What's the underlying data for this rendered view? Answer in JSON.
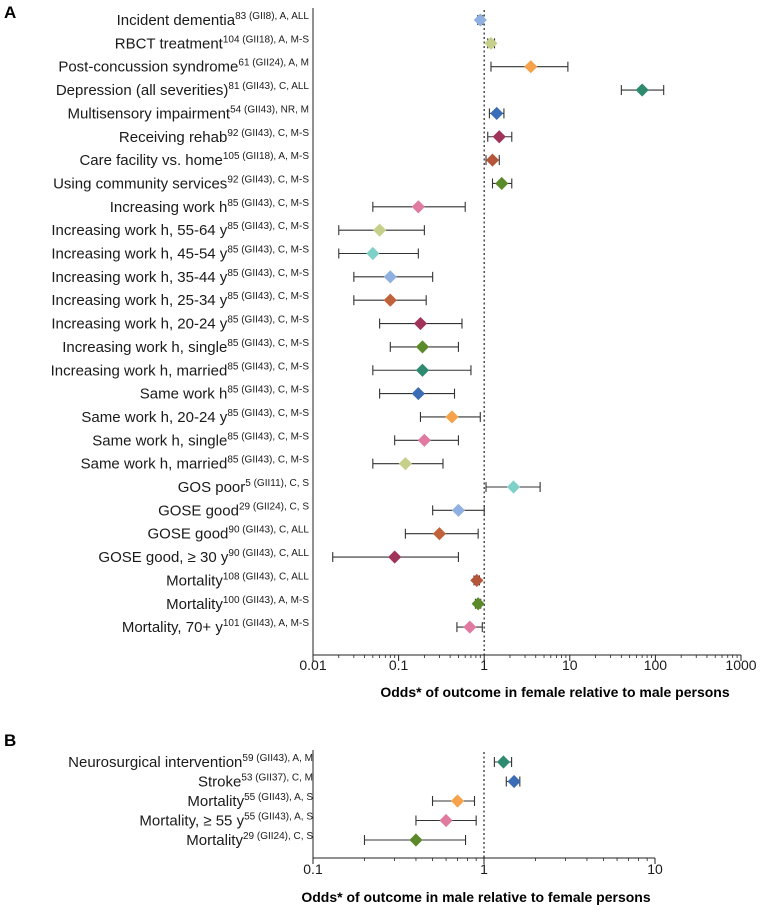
{
  "chart_data": [
    {
      "type": "forest",
      "panel": "A",
      "xscale": "log",
      "xlim": [
        0.01,
        1000
      ],
      "xticks": [
        0.01,
        0.1,
        1,
        10,
        100,
        1000
      ],
      "xtick_labels": [
        "0.01",
        "0.1",
        "1",
        "10",
        "100",
        "1000"
      ],
      "xlabel": "Odds* of outcome in female relative to male persons",
      "reference_line": 1,
      "rows": [
        {
          "label": "Incident dementia",
          "sup": "83 (GII8), A, ALL",
          "est": 0.9,
          "lo": 0.84,
          "hi": 0.96,
          "color": "#8fb0e0"
        },
        {
          "label": "RBCT treatment",
          "sup": "104 (GII18), A, M-S",
          "est": 1.2,
          "lo": 1.1,
          "hi": 1.32,
          "color": "#c7d08a"
        },
        {
          "label": "Post-concussion syndrome",
          "sup": "61 (GII24), A, M",
          "est": 3.5,
          "lo": 1.2,
          "hi": 9.5,
          "color": "#f5a24b"
        },
        {
          "label": "Depression (all severities)",
          "sup": "81 (GII43), C, ALL",
          "est": 70,
          "lo": 40,
          "hi": 125,
          "color": "#2e8b6f"
        },
        {
          "label": "Multisensory impairment",
          "sup": "54 (GII43), NR, M",
          "est": 1.4,
          "lo": 1.15,
          "hi": 1.7,
          "color": "#3a6db5"
        },
        {
          "label": "Receiving rehab",
          "sup": "92 (GII43), C, M-S",
          "est": 1.5,
          "lo": 1.1,
          "hi": 2.1,
          "color": "#a0335a"
        },
        {
          "label": "Care facility vs. home",
          "sup": "105 (GII18), A, M-S",
          "est": 1.25,
          "lo": 1.05,
          "hi": 1.5,
          "color": "#b5553a"
        },
        {
          "label": "Using community services",
          "sup": "92 (GII43), C, M-S",
          "est": 1.6,
          "lo": 1.25,
          "hi": 2.1,
          "color": "#5a8a2a"
        },
        {
          "label": "Increasing work h",
          "sup": "85 (GII43), C, M-S",
          "est": 0.17,
          "lo": 0.05,
          "hi": 0.6,
          "color": "#e07aa0"
        },
        {
          "label": "Increasing work h, 55-64 y",
          "sup": "85 (GII43), C, M-S",
          "est": 0.06,
          "lo": 0.02,
          "hi": 0.2,
          "color": "#c7d08a"
        },
        {
          "label": "Increasing work h, 45-54 y",
          "sup": "85 (GII43), C, M-S",
          "est": 0.05,
          "lo": 0.02,
          "hi": 0.17,
          "color": "#7fd0c8"
        },
        {
          "label": "Increasing work h, 35-44 y",
          "sup": "85 (GII43), C, M-S",
          "est": 0.08,
          "lo": 0.03,
          "hi": 0.25,
          "color": "#8fb0e0"
        },
        {
          "label": "Increasing work h, 25-34 y",
          "sup": "85 (GII43), C, M-S",
          "est": 0.08,
          "lo": 0.03,
          "hi": 0.21,
          "color": "#c0633a"
        },
        {
          "label": "Increasing work h, 20-24 y",
          "sup": "85 (GII43), C, M-S",
          "est": 0.18,
          "lo": 0.06,
          "hi": 0.55,
          "color": "#a0335a"
        },
        {
          "label": "Increasing work h, single",
          "sup": "85 (GII43), C, M-S",
          "est": 0.19,
          "lo": 0.08,
          "hi": 0.5,
          "color": "#5a8a2a"
        },
        {
          "label": "Increasing work h, married",
          "sup": "85 (GII43), C, M-S",
          "est": 0.19,
          "lo": 0.05,
          "hi": 0.7,
          "color": "#2e8b6f"
        },
        {
          "label": "Same work h",
          "sup": "85 (GII43), C, M-S",
          "est": 0.17,
          "lo": 0.06,
          "hi": 0.45,
          "color": "#3a6db5"
        },
        {
          "label": "Same work h, 20-24 y",
          "sup": "85 (GII43), C, M-S",
          "est": 0.42,
          "lo": 0.18,
          "hi": 0.9,
          "color": "#f5a24b"
        },
        {
          "label": "Same work h, single",
          "sup": "85 (GII43), C, M-S",
          "est": 0.2,
          "lo": 0.09,
          "hi": 0.5,
          "color": "#e07aa0"
        },
        {
          "label": "Same work h, married",
          "sup": "85 (GII43), C, M-S",
          "est": 0.12,
          "lo": 0.05,
          "hi": 0.33,
          "color": "#c7d08a"
        },
        {
          "label": "GOS poor",
          "sup": "5 (GII11), C, S",
          "est": 2.2,
          "lo": 1.05,
          "hi": 4.5,
          "color": "#7fd0c8"
        },
        {
          "label": "GOSE good",
          "sup": "29 (GII24), C, S",
          "est": 0.5,
          "lo": 0.25,
          "hi": 1.0,
          "color": "#8fb0e0"
        },
        {
          "label": "GOSE good",
          "sup": "90 (GII43), C, ALL",
          "est": 0.3,
          "lo": 0.12,
          "hi": 0.85,
          "color": "#c0633a"
        },
        {
          "label": "GOSE good, ≥ 30 y",
          "sup": "90 (GII43), C, ALL",
          "est": 0.09,
          "lo": 0.017,
          "hi": 0.5,
          "color": "#a0335a"
        },
        {
          "label": "Mortality",
          "sup": "108 (GII43), C, ALL",
          "est": 0.82,
          "lo": 0.76,
          "hi": 0.88,
          "color": "#b5553a"
        },
        {
          "label": "Mortality",
          "sup": "100 (GII43), A, M-S",
          "est": 0.85,
          "lo": 0.79,
          "hi": 0.91,
          "color": "#5a8a2a"
        },
        {
          "label": "Mortality, 70+ y",
          "sup": "101 (GII43), A, M-S",
          "est": 0.68,
          "lo": 0.48,
          "hi": 0.95,
          "color": "#e07aa0"
        }
      ]
    },
    {
      "type": "forest",
      "panel": "B",
      "xscale": "log",
      "xlim": [
        0.1,
        10
      ],
      "xticks": [
        0.1,
        1,
        10
      ],
      "xtick_labels": [
        "0.1",
        "1",
        "10"
      ],
      "xlabel": "Odds* of outcome in male relative to female persons",
      "reference_line": 1,
      "rows": [
        {
          "label": "Neurosurgical intervention",
          "sup": "59 (GII43), A, M",
          "est": 1.3,
          "lo": 1.15,
          "hi": 1.45,
          "color": "#2e8b6f"
        },
        {
          "label": "Stroke",
          "sup": "53 (GII37), C, M",
          "est": 1.5,
          "lo": 1.35,
          "hi": 1.62,
          "color": "#3a6db5"
        },
        {
          "label": "Mortality",
          "sup": "55 (GII43), A, S",
          "est": 0.7,
          "lo": 0.5,
          "hi": 0.88,
          "color": "#f5a24b"
        },
        {
          "label": "Mortality, ≥ 55 y",
          "sup": "55 (GII43), A, S",
          "est": 0.6,
          "lo": 0.4,
          "hi": 0.9,
          "color": "#e07aa0"
        },
        {
          "label": "Mortality",
          "sup": "29 (GII24), C, S",
          "est": 0.4,
          "lo": 0.2,
          "hi": 0.78,
          "color": "#5a8a2a"
        }
      ]
    }
  ]
}
